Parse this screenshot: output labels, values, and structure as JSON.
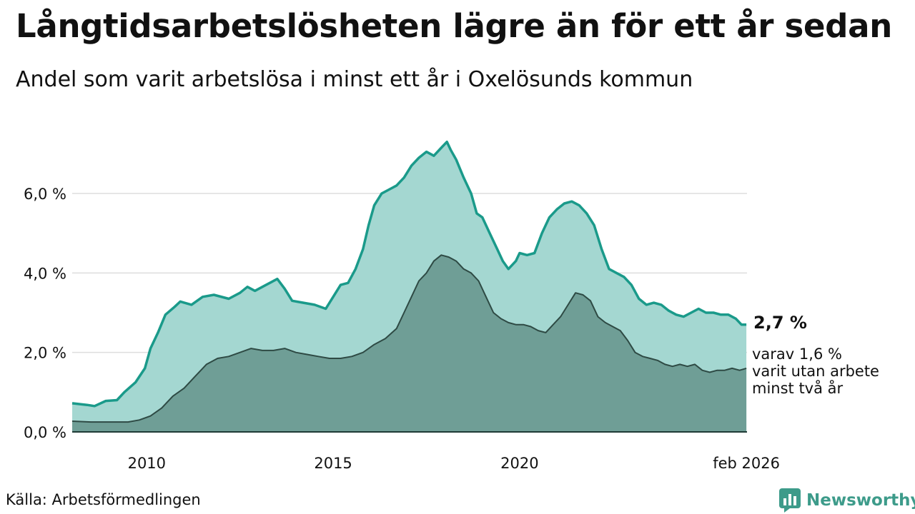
{
  "title": "Långtidsarbetslösheten lägre än för ett år sedan",
  "subtitle": "Andel som varit arbetslösa i minst ett år i Oxelösunds kommun",
  "source": "Källa: Arbetsförmedlingen",
  "brand": {
    "name": "Newsworthy",
    "icon": "bar-chart-logo-icon",
    "color": "#3d9b8a"
  },
  "colors": {
    "long_line": "#1a9a8a",
    "long_fill": "#a4d7d1",
    "very_long_line": "#2e4a44",
    "very_long_fill": "#6f9e96",
    "grid": "#dddddd"
  },
  "chart_data": {
    "type": "area",
    "title": "Långtidsarbetslösheten lägre än för ett år sedan",
    "subtitle": "Andel som varit arbetslösa i minst ett år i Oxelösunds kommun",
    "xlabel": "",
    "ylabel": "",
    "xlim": [
      2008.0,
      2026.1
    ],
    "ylim": [
      0,
      7.6
    ],
    "y_ticks": [
      {
        "value": 0,
        "label": "0,0 %"
      },
      {
        "value": 2,
        "label": "2,0 %"
      },
      {
        "value": 4,
        "label": "4,0 %"
      },
      {
        "value": 6,
        "label": "6,0 %"
      }
    ],
    "x_ticks": [
      {
        "value": 2010,
        "label": "2010"
      },
      {
        "value": 2015,
        "label": "2015"
      },
      {
        "value": 2020,
        "label": "2020"
      },
      {
        "value": 2026.083,
        "label": "feb 2026"
      }
    ],
    "grid": true,
    "series": [
      {
        "name": "Arbetslösa minst ett år",
        "end_label": "2,7 %",
        "points": [
          [
            2008.0,
            0.72
          ],
          [
            2008.4,
            0.68
          ],
          [
            2008.6,
            0.65
          ],
          [
            2008.9,
            0.78
          ],
          [
            2009.2,
            0.8
          ],
          [
            2009.4,
            1.0
          ],
          [
            2009.7,
            1.25
          ],
          [
            2009.95,
            1.6
          ],
          [
            2010.1,
            2.1
          ],
          [
            2010.3,
            2.5
          ],
          [
            2010.5,
            2.95
          ],
          [
            2010.75,
            3.15
          ],
          [
            2010.9,
            3.28
          ],
          [
            2011.2,
            3.2
          ],
          [
            2011.5,
            3.4
          ],
          [
            2011.8,
            3.45
          ],
          [
            2012.2,
            3.35
          ],
          [
            2012.5,
            3.5
          ],
          [
            2012.7,
            3.65
          ],
          [
            2012.9,
            3.55
          ],
          [
            2013.2,
            3.7
          ],
          [
            2013.5,
            3.85
          ],
          [
            2013.7,
            3.6
          ],
          [
            2013.9,
            3.3
          ],
          [
            2014.2,
            3.25
          ],
          [
            2014.5,
            3.2
          ],
          [
            2014.8,
            3.1
          ],
          [
            2015.0,
            3.4
          ],
          [
            2015.2,
            3.7
          ],
          [
            2015.4,
            3.75
          ],
          [
            2015.6,
            4.1
          ],
          [
            2015.8,
            4.6
          ],
          [
            2015.95,
            5.2
          ],
          [
            2016.1,
            5.7
          ],
          [
            2016.3,
            6.0
          ],
          [
            2016.5,
            6.1
          ],
          [
            2016.7,
            6.2
          ],
          [
            2016.9,
            6.4
          ],
          [
            2017.1,
            6.7
          ],
          [
            2017.3,
            6.9
          ],
          [
            2017.5,
            7.05
          ],
          [
            2017.7,
            6.95
          ],
          [
            2017.9,
            7.15
          ],
          [
            2018.05,
            7.3
          ],
          [
            2018.15,
            7.1
          ],
          [
            2018.3,
            6.85
          ],
          [
            2018.5,
            6.4
          ],
          [
            2018.7,
            6.0
          ],
          [
            2018.85,
            5.5
          ],
          [
            2019.0,
            5.4
          ],
          [
            2019.2,
            5.0
          ],
          [
            2019.4,
            4.6
          ],
          [
            2019.55,
            4.3
          ],
          [
            2019.7,
            4.1
          ],
          [
            2019.9,
            4.3
          ],
          [
            2020.0,
            4.5
          ],
          [
            2020.2,
            4.45
          ],
          [
            2020.4,
            4.5
          ],
          [
            2020.6,
            5.0
          ],
          [
            2020.8,
            5.4
          ],
          [
            2021.0,
            5.6
          ],
          [
            2021.2,
            5.75
          ],
          [
            2021.4,
            5.8
          ],
          [
            2021.6,
            5.7
          ],
          [
            2021.8,
            5.5
          ],
          [
            2022.0,
            5.2
          ],
          [
            2022.2,
            4.6
          ],
          [
            2022.4,
            4.1
          ],
          [
            2022.6,
            4.0
          ],
          [
            2022.8,
            3.9
          ],
          [
            2023.0,
            3.7
          ],
          [
            2023.2,
            3.35
          ],
          [
            2023.4,
            3.2
          ],
          [
            2023.6,
            3.25
          ],
          [
            2023.8,
            3.2
          ],
          [
            2024.0,
            3.05
          ],
          [
            2024.2,
            2.95
          ],
          [
            2024.4,
            2.9
          ],
          [
            2024.6,
            3.0
          ],
          [
            2024.8,
            3.1
          ],
          [
            2025.0,
            3.0
          ],
          [
            2025.2,
            3.0
          ],
          [
            2025.4,
            2.95
          ],
          [
            2025.6,
            2.95
          ],
          [
            2025.8,
            2.85
          ],
          [
            2025.95,
            2.7
          ],
          [
            2026.083,
            2.7
          ]
        ]
      },
      {
        "name": "varav minst två år",
        "end_label": [
          "varav 1,6 %",
          "varit utan arbete",
          "minst två år"
        ],
        "points": [
          [
            2008.0,
            0.27
          ],
          [
            2008.5,
            0.25
          ],
          [
            2009.0,
            0.25
          ],
          [
            2009.5,
            0.25
          ],
          [
            2009.8,
            0.3
          ],
          [
            2010.1,
            0.4
          ],
          [
            2010.4,
            0.6
          ],
          [
            2010.7,
            0.9
          ],
          [
            2011.0,
            1.1
          ],
          [
            2011.3,
            1.4
          ],
          [
            2011.6,
            1.7
          ],
          [
            2011.9,
            1.85
          ],
          [
            2012.2,
            1.9
          ],
          [
            2012.5,
            2.0
          ],
          [
            2012.8,
            2.1
          ],
          [
            2013.1,
            2.05
          ],
          [
            2013.4,
            2.05
          ],
          [
            2013.7,
            2.1
          ],
          [
            2014.0,
            2.0
          ],
          [
            2014.3,
            1.95
          ],
          [
            2014.6,
            1.9
          ],
          [
            2014.9,
            1.85
          ],
          [
            2015.2,
            1.85
          ],
          [
            2015.5,
            1.9
          ],
          [
            2015.8,
            2.0
          ],
          [
            2016.1,
            2.2
          ],
          [
            2016.4,
            2.35
          ],
          [
            2016.7,
            2.6
          ],
          [
            2016.9,
            3.0
          ],
          [
            2017.1,
            3.4
          ],
          [
            2017.3,
            3.8
          ],
          [
            2017.5,
            4.0
          ],
          [
            2017.7,
            4.3
          ],
          [
            2017.9,
            4.45
          ],
          [
            2018.1,
            4.4
          ],
          [
            2018.3,
            4.3
          ],
          [
            2018.5,
            4.1
          ],
          [
            2018.7,
            4.0
          ],
          [
            2018.9,
            3.8
          ],
          [
            2019.1,
            3.4
          ],
          [
            2019.3,
            3.0
          ],
          [
            2019.5,
            2.85
          ],
          [
            2019.7,
            2.75
          ],
          [
            2019.9,
            2.7
          ],
          [
            2020.1,
            2.7
          ],
          [
            2020.3,
            2.65
          ],
          [
            2020.5,
            2.55
          ],
          [
            2020.7,
            2.5
          ],
          [
            2020.9,
            2.7
          ],
          [
            2021.1,
            2.9
          ],
          [
            2021.3,
            3.2
          ],
          [
            2021.5,
            3.5
          ],
          [
            2021.7,
            3.45
          ],
          [
            2021.9,
            3.3
          ],
          [
            2022.1,
            2.9
          ],
          [
            2022.3,
            2.75
          ],
          [
            2022.5,
            2.65
          ],
          [
            2022.7,
            2.55
          ],
          [
            2022.9,
            2.3
          ],
          [
            2023.1,
            2.0
          ],
          [
            2023.3,
            1.9
          ],
          [
            2023.5,
            1.85
          ],
          [
            2023.7,
            1.8
          ],
          [
            2023.9,
            1.7
          ],
          [
            2024.1,
            1.65
          ],
          [
            2024.3,
            1.7
          ],
          [
            2024.5,
            1.65
          ],
          [
            2024.7,
            1.7
          ],
          [
            2024.9,
            1.55
          ],
          [
            2025.1,
            1.5
          ],
          [
            2025.3,
            1.55
          ],
          [
            2025.5,
            1.55
          ],
          [
            2025.7,
            1.6
          ],
          [
            2025.9,
            1.55
          ],
          [
            2026.083,
            1.6
          ]
        ]
      }
    ]
  }
}
